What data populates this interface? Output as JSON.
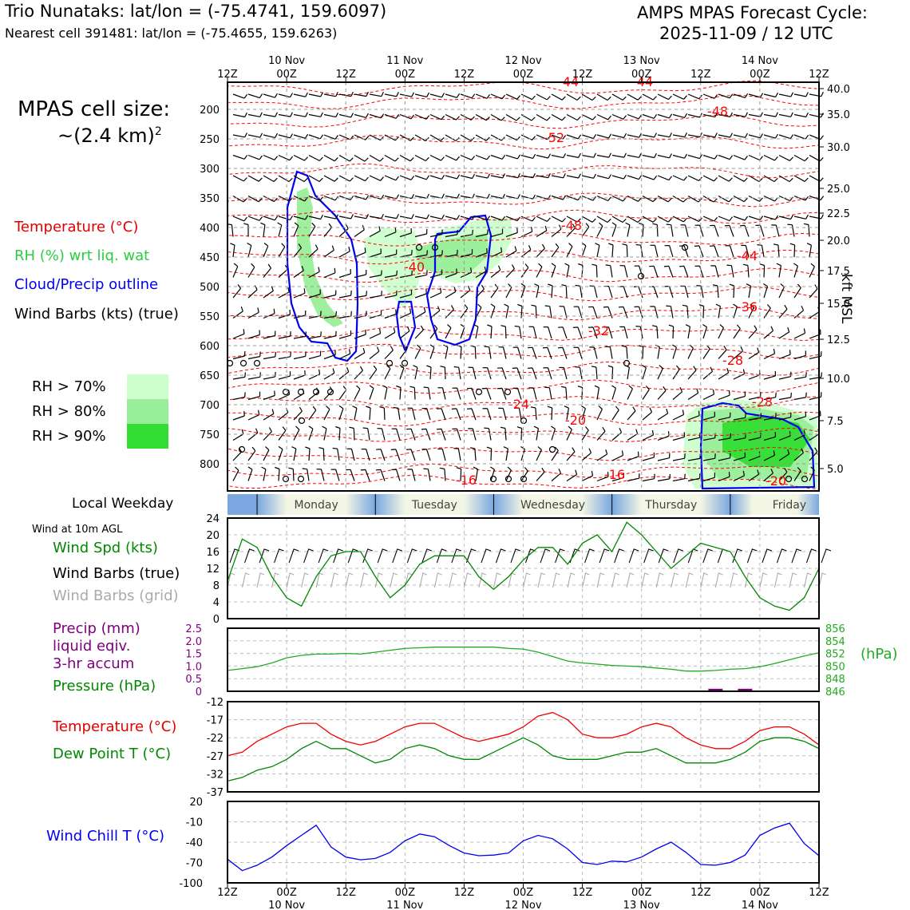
{
  "header": {
    "title_left": "Trio Nunataks: lat/lon = (-75.4741, 159.6097)",
    "subtitle_left": "Nearest cell 391481: lat/lon = (-75.4655, 159.6263)",
    "title_right_1": "AMPS MPAS Forecast Cycle:",
    "title_right_2": "2025-11-09 / 12 UTC"
  },
  "side": {
    "cell_size_1": "MPAS cell size:",
    "cell_size_2": "~(2.4 km)",
    "cell_size_sup": "2",
    "leg_temp": "Temperature (°C)",
    "leg_rh": "RH (%) wrt liq. wat",
    "leg_cloud": "Cloud/Precip outline",
    "leg_barbs": "Wind Barbs (kts) (true)",
    "rh70": "RH > 70%",
    "rh80": "RH > 80%",
    "rh90": "RH > 90%",
    "local_weekday": "Local Weekday",
    "wind10m": "Wind at 10m AGL",
    "wind_spd": "Wind Spd (kts)",
    "wind_barbs_true": "Wind Barbs (true)",
    "wind_barbs_grid": "Wind Barbs (grid)",
    "precip_1": "Precip (mm)",
    "precip_2": "liquid eqiv.",
    "precip_3": "3-hr accum",
    "pressure": "Pressure (hPa)",
    "pressure_unit": "(hPa)",
    "temp": "Temperature (°C)",
    "dewpt": "Dew Point T (°C)",
    "windchill": "Wind Chill T (°C)",
    "kft_label": "kft MSL"
  },
  "colors": {
    "temp": "#ff0000",
    "rh": "#33dd33",
    "cloud": "#0000ee",
    "dew": "#008800",
    "pressure": "#22aa22",
    "precip": "#800080",
    "chill": "#0000ee",
    "rh70": "#ccffcc",
    "rh80": "#99ee99",
    "rh90": "#33dd33"
  },
  "time_axis": {
    "ticks": [
      "12Z",
      "00Z",
      "12Z",
      "00Z",
      "12Z",
      "00Z",
      "12Z",
      "00Z",
      "12Z",
      "00Z",
      "12Z"
    ],
    "dates": [
      "10 Nov",
      "11 Nov",
      "12 Nov",
      "13 Nov",
      "14 Nov"
    ]
  },
  "weekdays": [
    "Monday",
    "Tuesday",
    "Wednesday",
    "Thursday",
    "Friday"
  ],
  "chart_data": [
    {
      "type": "heatmap",
      "name": "cross-section",
      "y_pressure_ticks": [
        200,
        250,
        300,
        350,
        400,
        450,
        500,
        550,
        600,
        650,
        700,
        750,
        800
      ],
      "y_kft_ticks": [
        "40.0",
        "35.0",
        "30.0",
        "25.0",
        "22.5",
        "20.0",
        "17.5",
        "15.0",
        "12.5",
        "10.0",
        "7.5",
        "5.0"
      ],
      "temperature_contour_labels": [
        "-44",
        "-44",
        "-48",
        "-52",
        "-48",
        "-40",
        "-44",
        "-36",
        "-32",
        "-28",
        "-28",
        "-24",
        "-20",
        "-16",
        "-16",
        "-20"
      ]
    },
    {
      "type": "line",
      "name": "wind-speed",
      "ylim": [
        0,
        24
      ],
      "yticks": [
        0,
        4,
        8,
        12,
        16,
        20,
        24
      ],
      "x_hours": [
        0,
        3,
        6,
        9,
        12,
        15,
        18,
        21,
        24,
        27,
        30,
        33,
        36,
        39,
        42,
        45,
        48,
        51,
        54,
        57,
        60,
        63,
        66,
        69,
        72,
        75,
        78,
        81,
        84,
        87,
        90,
        93,
        96,
        99,
        102,
        105,
        108,
        111,
        114,
        117,
        120
      ],
      "values": [
        9,
        19,
        17,
        10,
        5,
        3,
        10,
        15,
        16,
        16,
        10,
        5,
        8,
        13,
        15,
        15,
        15,
        10,
        7,
        10,
        14,
        17,
        17,
        13,
        18,
        20,
        16,
        23,
        20,
        16,
        12,
        15,
        18,
        17,
        16,
        10,
        5,
        3,
        2,
        5,
        12
      ]
    },
    {
      "type": "line",
      "name": "pressure",
      "ylim": [
        846,
        856
      ],
      "yticks": [
        "846",
        "848",
        "850",
        "852",
        "854",
        "856"
      ],
      "precip_ticks": [
        "0",
        "0.5",
        "1.0",
        "1.5",
        "2.0",
        "2.5"
      ],
      "x_hours": [
        0,
        3,
        6,
        9,
        12,
        15,
        18,
        21,
        24,
        27,
        30,
        33,
        36,
        39,
        42,
        45,
        48,
        51,
        54,
        57,
        60,
        63,
        66,
        69,
        72,
        75,
        78,
        81,
        84,
        87,
        90,
        93,
        96,
        99,
        102,
        105,
        108,
        111,
        114,
        117,
        120
      ],
      "values": [
        849.3,
        849.6,
        849.9,
        850.5,
        851.3,
        851.7,
        851.9,
        851.9,
        852.0,
        851.9,
        852.2,
        852.5,
        852.8,
        852.9,
        853.0,
        853.0,
        853.0,
        853.0,
        853.0,
        852.8,
        852.7,
        852.2,
        851.5,
        850.8,
        850.5,
        850.3,
        850.1,
        850.0,
        849.9,
        849.7,
        849.5,
        849.2,
        849.2,
        849.3,
        849.5,
        849.6,
        849.9,
        850.4,
        851.0,
        851.6,
        852.1
      ],
      "precip_mm": [
        0,
        0,
        0,
        0,
        0,
        0,
        0,
        0,
        0,
        0,
        0,
        0,
        0,
        0,
        0,
        0,
        0,
        0,
        0,
        0,
        0,
        0,
        0,
        0,
        0,
        0,
        0,
        0,
        0,
        0,
        0,
        0,
        0,
        0.1,
        0,
        0.1,
        0,
        0,
        0,
        0,
        0
      ]
    },
    {
      "type": "line",
      "name": "temperature-dewpoint",
      "ylim": [
        -37,
        -12
      ],
      "yticks": [
        "-12",
        "-17",
        "-22",
        "-27",
        "-32",
        "-37"
      ],
      "x_hours": [
        0,
        3,
        6,
        9,
        12,
        15,
        18,
        21,
        24,
        27,
        30,
        33,
        36,
        39,
        42,
        45,
        48,
        51,
        54,
        57,
        60,
        63,
        66,
        69,
        72,
        75,
        78,
        81,
        84,
        87,
        90,
        93,
        96,
        99,
        102,
        105,
        108,
        111,
        114,
        117,
        120
      ],
      "series": [
        {
          "name": "Temperature",
          "values": [
            -27,
            -26,
            -23,
            -21,
            -19,
            -18,
            -18,
            -21,
            -23,
            -24,
            -23,
            -21,
            -19,
            -18,
            -18,
            -20,
            -22,
            -23,
            -22,
            -21,
            -19,
            -16,
            -15,
            -17,
            -21,
            -22,
            -22,
            -21,
            -19,
            -18,
            -19,
            -22,
            -24,
            -25,
            -25,
            -23,
            -20,
            -19,
            -19,
            -21,
            -24
          ]
        },
        {
          "name": "Dew Point",
          "values": [
            -34,
            -33,
            -31,
            -30,
            -28,
            -25,
            -23,
            -25,
            -25,
            -27,
            -29,
            -28,
            -25,
            -24,
            -25,
            -27,
            -28,
            -28,
            -26,
            -24,
            -22,
            -24,
            -27,
            -28,
            -28,
            -28,
            -27,
            -26,
            -26,
            -25,
            -27,
            -29,
            -29,
            -29,
            -28,
            -26,
            -23,
            -22,
            -22,
            -23,
            -25
          ]
        }
      ]
    },
    {
      "type": "line",
      "name": "wind-chill",
      "ylim": [
        -100,
        20
      ],
      "yticks": [
        "20",
        "-10",
        "-40",
        "-70",
        "-100"
      ],
      "x_hours": [
        0,
        3,
        6,
        9,
        12,
        15,
        18,
        21,
        24,
        27,
        30,
        33,
        36,
        39,
        42,
        45,
        48,
        51,
        54,
        57,
        60,
        63,
        66,
        69,
        72,
        75,
        78,
        81,
        84,
        87,
        90,
        93,
        96,
        99,
        102,
        105,
        108,
        111,
        114,
        117,
        120
      ],
      "values": [
        -65,
        -82,
        -74,
        -62,
        -45,
        -30,
        -15,
        -47,
        -62,
        -66,
        -64,
        -55,
        -38,
        -28,
        -32,
        -45,
        -56,
        -60,
        -59,
        -56,
        -38,
        -30,
        -35,
        -50,
        -70,
        -73,
        -68,
        -69,
        -62,
        -50,
        -40,
        -55,
        -73,
        -74,
        -70,
        -59,
        -30,
        -19,
        -12,
        -42,
        -60
      ]
    }
  ]
}
